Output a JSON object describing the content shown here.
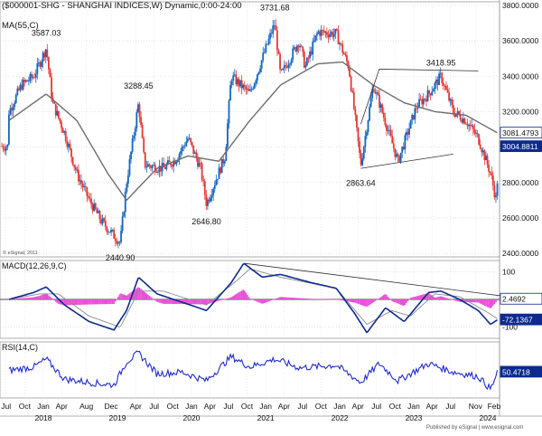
{
  "header": {
    "title": "($000001-SHG - SHANGHAI INDICES,W) Dynamic,0:00-24:00",
    "ma_label": "MA(55,C)",
    "copyright": "© eSignal, 2011",
    "footer": "Published by eSignal | www.esignal.com"
  },
  "colors": {
    "up_bar": "#1565c0",
    "down_bar": "#e53935",
    "ma_line": "#6d6d6d",
    "trendline": "#333333",
    "macd_line": "#0d2b8c",
    "signal_line": "#8a8a8a",
    "histogram": "#e84fd8",
    "rsi_line": "#1f2bcf",
    "label_box": "#0d2b8c"
  },
  "chart_data": [
    {
      "type": "candlestick",
      "name": "price",
      "x_axis": {
        "month_labels": [
          "Jul",
          "Oct",
          "Jan",
          "Apr",
          "Aug",
          "Dec",
          "Apr",
          "Jul",
          "Oct",
          "Jan",
          "Apr",
          "Jul",
          "Oct",
          "Jan",
          "Apr",
          "Jul",
          "Oct",
          "Jan",
          "Apr",
          "Jul",
          "Oct",
          "Jan",
          "Apr",
          "Jul",
          "Nov",
          "Feb"
        ],
        "month_dates": [
          "2017-07",
          "2017-10",
          "2018-01",
          "2018-04",
          "2018-08",
          "2018-12",
          "2019-04",
          "2019-07",
          "2019-10",
          "2020-01",
          "2020-04",
          "2020-07",
          "2020-10",
          "2021-01",
          "2021-04",
          "2021-07",
          "2021-10",
          "2022-01",
          "2022-04",
          "2022-07",
          "2022-10",
          "2023-01",
          "2023-04",
          "2023-07",
          "2023-11",
          "2024-02"
        ],
        "year_labels": [
          "2018",
          "2019",
          "2020",
          "2021",
          "2022",
          "2023",
          "2024"
        ],
        "year_dates": [
          "2018-01",
          "2019-01",
          "2020-01",
          "2021-01",
          "2022-01",
          "2023-01",
          "2024-01"
        ]
      },
      "y_axis": {
        "ticks": [
          "3800.0000",
          "3600.0000",
          "3400.0000",
          "3200.0000",
          "3000.0000",
          "2800.0000",
          "2600.0000",
          "2400.0000"
        ],
        "tick_values": [
          3800,
          3600,
          3400,
          3200,
          3000,
          2800,
          2600,
          2400
        ],
        "ylim": [
          2380,
          3820
        ]
      },
      "series_ma55_label": "MA(55,C)",
      "pivots": [
        {
          "date": "2018-01",
          "value": 3587.03,
          "label": "3587.03"
        },
        {
          "date": "2019-01",
          "value": 2440.9,
          "label": "2440.90"
        },
        {
          "date": "2019-04",
          "value": 3288.45,
          "label": "3288.45"
        },
        {
          "date": "2020-03",
          "value": 2646.8,
          "label": "2646.80"
        },
        {
          "date": "2021-02",
          "value": 3731.68,
          "label": "3731.68"
        },
        {
          "date": "2022-04",
          "value": 2863.64,
          "label": "2863.64"
        },
        {
          "date": "2023-05",
          "value": 3418.95,
          "label": "3418.95"
        }
      ],
      "trendlines": [
        {
          "from": {
            "date": "2022-07",
            "value": 3440
          },
          "to": {
            "date": "2023-11",
            "value": 3430
          }
        },
        {
          "from": {
            "date": "2022-04",
            "value": 3130
          },
          "to": {
            "date": "2022-07",
            "value": 3440
          }
        },
        {
          "from": {
            "date": "2022-04",
            "value": 2880
          },
          "to": {
            "date": "2023-07",
            "value": 2960
          }
        }
      ],
      "last_labels": [
        {
          "value": 3081.4793,
          "text": "3081.4793",
          "style": "outline"
        },
        {
          "value": 3004.8811,
          "text": "3004.8811",
          "style": "filled"
        }
      ],
      "anchors": [
        {
          "date": "2017-07",
          "value": 3200
        },
        {
          "date": "2017-09",
          "value": 3350
        },
        {
          "date": "2017-11",
          "value": 3400
        },
        {
          "date": "2018-01",
          "value": 3560
        },
        {
          "date": "2018-02",
          "value": 3250
        },
        {
          "date": "2018-04",
          "value": 3080
        },
        {
          "date": "2018-06",
          "value": 2850
        },
        {
          "date": "2018-08",
          "value": 2700
        },
        {
          "date": "2018-10",
          "value": 2580
        },
        {
          "date": "2019-01",
          "value": 2460
        },
        {
          "date": "2019-02",
          "value": 2800
        },
        {
          "date": "2019-04",
          "value": 3250
        },
        {
          "date": "2019-05",
          "value": 2900
        },
        {
          "date": "2019-08",
          "value": 2880
        },
        {
          "date": "2019-10",
          "value": 2930
        },
        {
          "date": "2019-12",
          "value": 3050
        },
        {
          "date": "2020-02",
          "value": 2880
        },
        {
          "date": "2020-03",
          "value": 2680
        },
        {
          "date": "2020-06",
          "value": 2950
        },
        {
          "date": "2020-07",
          "value": 3400
        },
        {
          "date": "2020-10",
          "value": 3300
        },
        {
          "date": "2021-01",
          "value": 3600
        },
        {
          "date": "2021-02",
          "value": 3700
        },
        {
          "date": "2021-03",
          "value": 3400
        },
        {
          "date": "2021-06",
          "value": 3600
        },
        {
          "date": "2021-07",
          "value": 3450
        },
        {
          "date": "2021-09",
          "value": 3650
        },
        {
          "date": "2021-12",
          "value": 3640
        },
        {
          "date": "2022-02",
          "value": 3450
        },
        {
          "date": "2022-04",
          "value": 2900
        },
        {
          "date": "2022-06",
          "value": 3350
        },
        {
          "date": "2022-07",
          "value": 3250
        },
        {
          "date": "2022-10",
          "value": 2920
        },
        {
          "date": "2023-01",
          "value": 3230
        },
        {
          "date": "2023-03",
          "value": 3300
        },
        {
          "date": "2023-05",
          "value": 3400
        },
        {
          "date": "2023-07",
          "value": 3200
        },
        {
          "date": "2023-09",
          "value": 3150
        },
        {
          "date": "2023-11",
          "value": 3050
        },
        {
          "date": "2024-01",
          "value": 2850
        },
        {
          "date": "2024-02",
          "value": 2680
        },
        {
          "date": "2024-02-20",
          "value": 3004.88
        }
      ],
      "ma55_anchors": [
        {
          "date": "2017-07",
          "value": 3150
        },
        {
          "date": "2018-01",
          "value": 3300
        },
        {
          "date": "2018-06",
          "value": 3150
        },
        {
          "date": "2018-11",
          "value": 2850
        },
        {
          "date": "2019-02",
          "value": 2700
        },
        {
          "date": "2019-07",
          "value": 2880
        },
        {
          "date": "2019-12",
          "value": 2950
        },
        {
          "date": "2020-05",
          "value": 2920
        },
        {
          "date": "2020-10",
          "value": 3150
        },
        {
          "date": "2021-03",
          "value": 3350
        },
        {
          "date": "2021-09",
          "value": 3470
        },
        {
          "date": "2022-01",
          "value": 3480
        },
        {
          "date": "2022-06",
          "value": 3350
        },
        {
          "date": "2022-11",
          "value": 3250
        },
        {
          "date": "2023-04",
          "value": 3200
        },
        {
          "date": "2023-09",
          "value": 3180
        },
        {
          "date": "2024-02",
          "value": 3081.48
        }
      ]
    },
    {
      "type": "line",
      "name": "MACD",
      "label": "MACD(12,26,9,C)",
      "y_axis": {
        "ticks": [
          "100",
          "0",
          "-100"
        ],
        "tick_values": [
          100,
          0,
          -100
        ],
        "ylim": [
          -140,
          140
        ]
      },
      "value_labels": [
        {
          "value": 2.4692,
          "text": "2.4692",
          "style": "outline"
        },
        {
          "value": -72.1367,
          "text": "-72.1367",
          "style": "filled"
        }
      ],
      "macd_anchors": [
        {
          "date": "2017-07",
          "value": 0
        },
        {
          "date": "2017-11",
          "value": 25
        },
        {
          "date": "2018-01",
          "value": 45
        },
        {
          "date": "2018-04",
          "value": -20
        },
        {
          "date": "2018-08",
          "value": -80
        },
        {
          "date": "2018-12",
          "value": -110
        },
        {
          "date": "2019-02",
          "value": -40
        },
        {
          "date": "2019-04",
          "value": 80
        },
        {
          "date": "2019-07",
          "value": 20
        },
        {
          "date": "2019-11",
          "value": -10
        },
        {
          "date": "2020-03",
          "value": -40
        },
        {
          "date": "2020-07",
          "value": 60
        },
        {
          "date": "2020-09",
          "value": 130
        },
        {
          "date": "2020-12",
          "value": 80
        },
        {
          "date": "2021-03",
          "value": 90
        },
        {
          "date": "2021-08",
          "value": 60
        },
        {
          "date": "2021-12",
          "value": 40
        },
        {
          "date": "2022-03",
          "value": -50
        },
        {
          "date": "2022-05",
          "value": -120
        },
        {
          "date": "2022-08",
          "value": -30
        },
        {
          "date": "2022-11",
          "value": -80
        },
        {
          "date": "2023-03",
          "value": 25
        },
        {
          "date": "2023-05",
          "value": 30
        },
        {
          "date": "2023-08",
          "value": 0
        },
        {
          "date": "2023-11",
          "value": -40
        },
        {
          "date": "2024-01",
          "value": -90
        },
        {
          "date": "2024-02-20",
          "value": -72.14
        }
      ],
      "signal_anchors": [
        {
          "date": "2017-07",
          "value": 0
        },
        {
          "date": "2017-12",
          "value": 20
        },
        {
          "date": "2018-03",
          "value": 20
        },
        {
          "date": "2018-08",
          "value": -60
        },
        {
          "date": "2019-01",
          "value": -100
        },
        {
          "date": "2019-04",
          "value": 30
        },
        {
          "date": "2019-08",
          "value": 30
        },
        {
          "date": "2020-03",
          "value": -20
        },
        {
          "date": "2020-08",
          "value": 70
        },
        {
          "date": "2020-10",
          "value": 110
        },
        {
          "date": "2021-03",
          "value": 80
        },
        {
          "date": "2021-12",
          "value": 40
        },
        {
          "date": "2022-05",
          "value": -90
        },
        {
          "date": "2022-09",
          "value": -40
        },
        {
          "date": "2022-12",
          "value": -60
        },
        {
          "date": "2023-04",
          "value": 20
        },
        {
          "date": "2023-08",
          "value": 10
        },
        {
          "date": "2023-12",
          "value": -40
        },
        {
          "date": "2024-02-20",
          "value": -70
        }
      ],
      "trendline": {
        "from": {
          "date": "2020-09",
          "value": 130
        },
        "to": {
          "date": "2024-02",
          "value": 10
        }
      }
    },
    {
      "type": "line",
      "name": "RSI",
      "label": "RSI(14,C)",
      "y_axis": {
        "ylim": [
          20,
          85
        ]
      },
      "value_labels": [
        {
          "value": 50.4718,
          "text": "50.4718",
          "style": "filled"
        }
      ],
      "rsi_anchors": [
        {
          "date": "2017-07",
          "value": 52
        },
        {
          "date": "2017-11",
          "value": 56
        },
        {
          "date": "2018-01",
          "value": 65
        },
        {
          "date": "2018-04",
          "value": 42
        },
        {
          "date": "2018-08",
          "value": 38
        },
        {
          "date": "2018-12",
          "value": 35
        },
        {
          "date": "2019-02",
          "value": 62
        },
        {
          "date": "2019-04",
          "value": 72
        },
        {
          "date": "2019-07",
          "value": 48
        },
        {
          "date": "2019-11",
          "value": 50
        },
        {
          "date": "2020-03",
          "value": 40
        },
        {
          "date": "2020-07",
          "value": 68
        },
        {
          "date": "2020-10",
          "value": 56
        },
        {
          "date": "2021-02",
          "value": 65
        },
        {
          "date": "2021-06",
          "value": 55
        },
        {
          "date": "2021-12",
          "value": 58
        },
        {
          "date": "2022-04",
          "value": 38
        },
        {
          "date": "2022-07",
          "value": 60
        },
        {
          "date": "2022-10",
          "value": 40
        },
        {
          "date": "2023-03",
          "value": 60
        },
        {
          "date": "2023-07",
          "value": 50
        },
        {
          "date": "2023-11",
          "value": 45
        },
        {
          "date": "2024-01",
          "value": 30
        },
        {
          "date": "2024-02-20",
          "value": 50.47
        }
      ]
    }
  ]
}
